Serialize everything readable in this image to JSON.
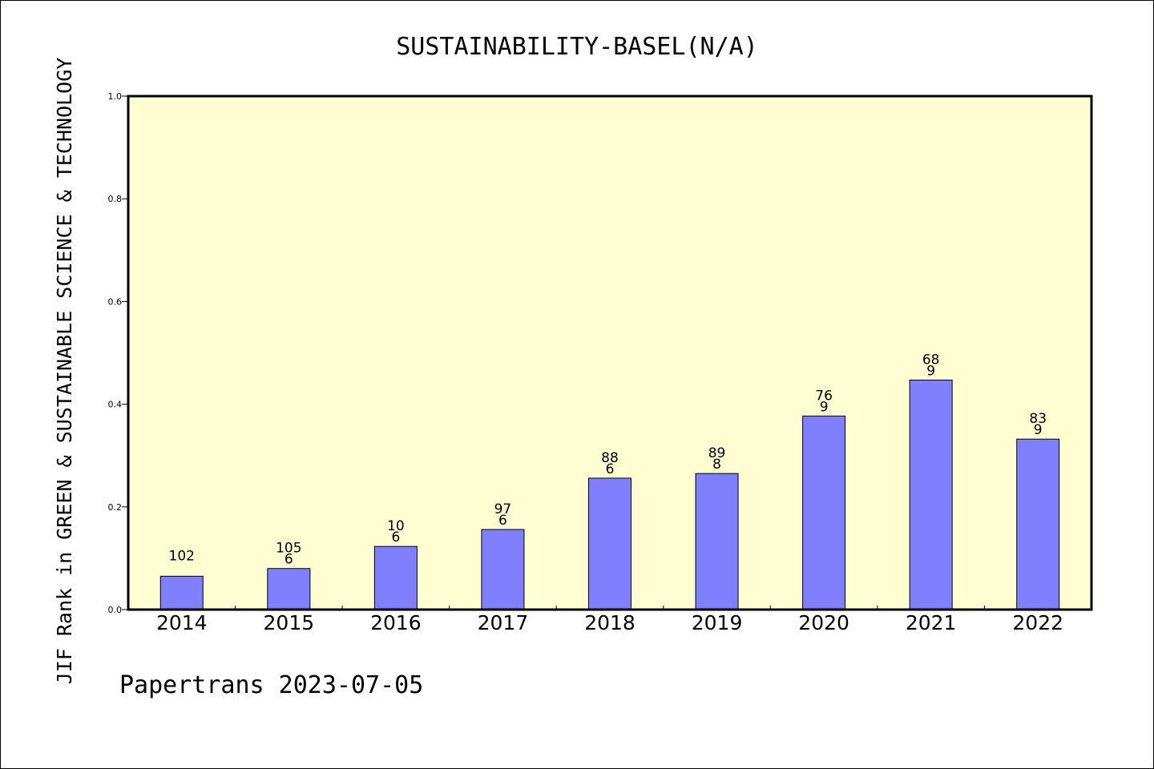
{
  "chart_data": {
    "type": "bar",
    "title": "SUSTAINABILITY-BASEL(N/A)",
    "xlabel": "",
    "ylabel": "JIF Rank in GREEN & SUSTAINABLE SCIENCE & TECHNOLOGY",
    "categories": [
      "2014",
      "2015",
      "2016",
      "2017",
      "2018",
      "2019",
      "2020",
      "2021",
      "2022"
    ],
    "values": [
      0.065,
      0.08,
      0.123,
      0.156,
      0.256,
      0.265,
      0.377,
      0.447,
      0.332
    ],
    "data_labels": [
      [
        "102"
      ],
      [
        "105",
        "6"
      ],
      [
        "10",
        "6"
      ],
      [
        "97",
        "6"
      ],
      [
        "88",
        "6"
      ],
      [
        "89",
        "8"
      ],
      [
        "76",
        "9"
      ],
      [
        "68",
        "9"
      ],
      [
        "83",
        "9"
      ]
    ],
    "ylim": [
      0,
      1.0
    ],
    "yticks": [
      "0.0",
      "0.2",
      "0.4",
      "0.6",
      "0.8",
      "1.0"
    ],
    "grid": false,
    "colors": {
      "plot_background": "#ffffd2",
      "bar_fill": "#8080ff",
      "bar_stroke": "#000000"
    }
  },
  "footer": {
    "text": "Papertrans 2023-07-05"
  }
}
